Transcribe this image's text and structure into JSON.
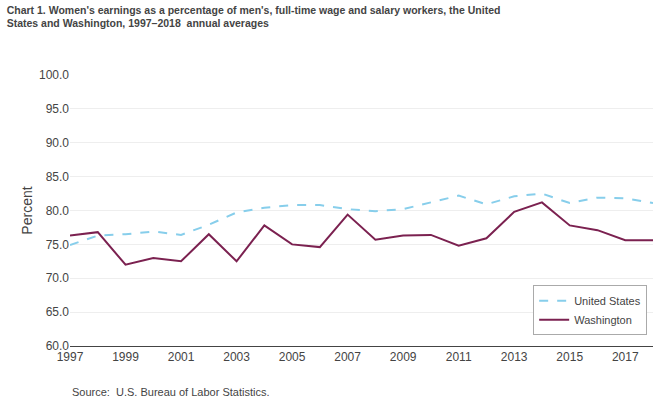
{
  "chart_data": {
    "type": "line",
    "title": [
      "Chart 1. Women's earnings as a percentage of men's, full-time wage and salary workers, the United",
      "States and Washington, 1997–2018  annual averages"
    ],
    "ylabel": "Percent",
    "annotations": [
      "Source:  U.S. Bureau of Labor Statistics."
    ],
    "x": [
      1997,
      1998,
      1999,
      2000,
      2001,
      2002,
      2003,
      2004,
      2005,
      2006,
      2007,
      2008,
      2009,
      2010,
      2011,
      2012,
      2013,
      2014,
      2015,
      2016,
      2017,
      2018
    ],
    "series": [
      {
        "name": "United States",
        "color": "#87CEEB",
        "line_style": "dashed",
        "values": [
          74.9,
          76.3,
          76.5,
          76.9,
          76.4,
          77.9,
          79.7,
          80.4,
          80.8,
          80.8,
          80.2,
          79.9,
          80.2,
          81.2,
          82.2,
          80.9,
          82.1,
          82.5,
          81.1,
          81.9,
          81.8,
          81.1
        ]
      },
      {
        "name": "Washington",
        "color": "#7B2150",
        "line_style": "solid",
        "values": [
          76.3,
          76.8,
          72.0,
          73.0,
          72.5,
          76.5,
          72.5,
          77.8,
          75.0,
          74.6,
          79.4,
          75.7,
          76.3,
          76.4,
          74.8,
          75.9,
          79.8,
          81.2,
          77.8,
          77.1,
          75.6,
          75.6
        ]
      }
    ],
    "xlim": [
      1997,
      2018
    ],
    "xticks": [
      1997,
      1999,
      2001,
      2003,
      2005,
      2007,
      2009,
      2011,
      2013,
      2015,
      2017
    ],
    "ylim": [
      60.0,
      100.0
    ],
    "yticks": [
      {
        "value": 60.0,
        "label": "60.0"
      },
      {
        "value": 65.0,
        "label": "65.0"
      },
      {
        "value": 70.0,
        "label": "70.0"
      },
      {
        "value": 75.0,
        "label": "75.0"
      },
      {
        "value": 80.0,
        "label": "80.0"
      },
      {
        "value": 85.0,
        "label": "85.0"
      },
      {
        "value": 90.0,
        "label": "90.0"
      },
      {
        "value": 95.0,
        "label": "95.0"
      },
      {
        "value": 100.0,
        "label": "100.0"
      }
    ],
    "grid": "y",
    "legend": "lower right"
  }
}
